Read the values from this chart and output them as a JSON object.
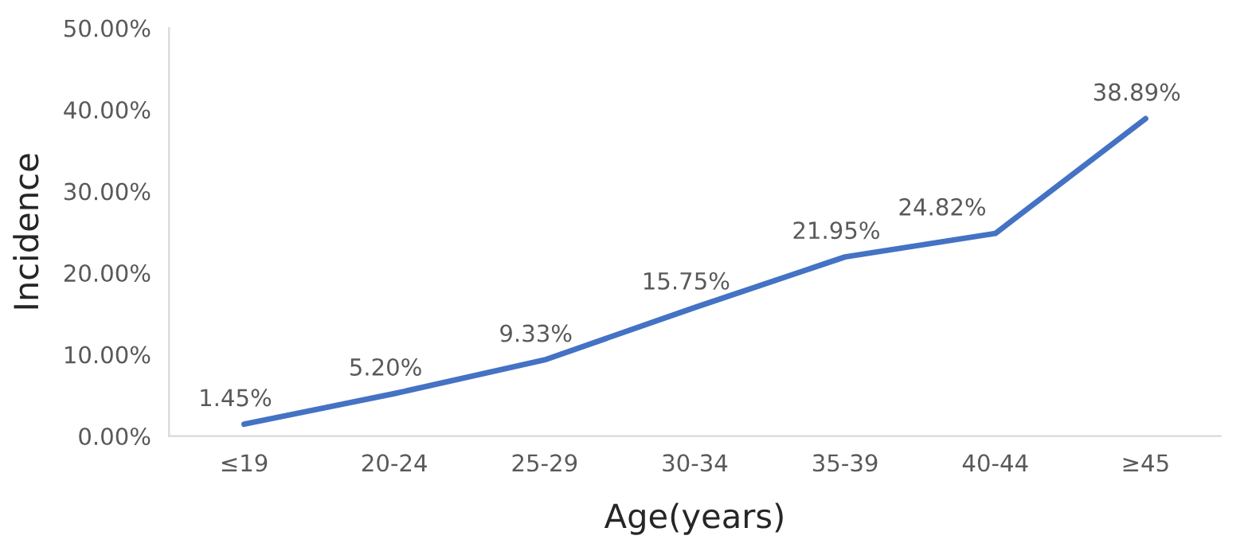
{
  "chart_data": {
    "type": "line",
    "xlabel": "Age(years)",
    "ylabel": "Incidence",
    "categories": [
      "≤19",
      "20-24",
      "25-29",
      "30-34",
      "35-39",
      "40-44",
      "≥45"
    ],
    "series": [
      {
        "color": "#4472c4",
        "values": [
          1.45,
          5.2,
          9.33,
          15.75,
          21.95,
          24.82,
          38.89
        ],
        "value_labels": [
          "1.45%",
          "5.20%",
          "9.33%",
          "15.75%",
          "21.95%",
          "24.82%",
          "38.89%"
        ]
      }
    ],
    "ylim": [
      0,
      50
    ],
    "yticks": [
      {
        "value": 0,
        "label": "0.00%"
      },
      {
        "value": 10,
        "label": "10.00%"
      },
      {
        "value": 20,
        "label": "20.00%"
      },
      {
        "value": 30,
        "label": "30.00%"
      },
      {
        "value": 40,
        "label": "40.00%"
      },
      {
        "value": 50,
        "label": "50.00%"
      }
    ],
    "grid": false,
    "legend": false,
    "marker": "none",
    "line_style": "solid"
  }
}
